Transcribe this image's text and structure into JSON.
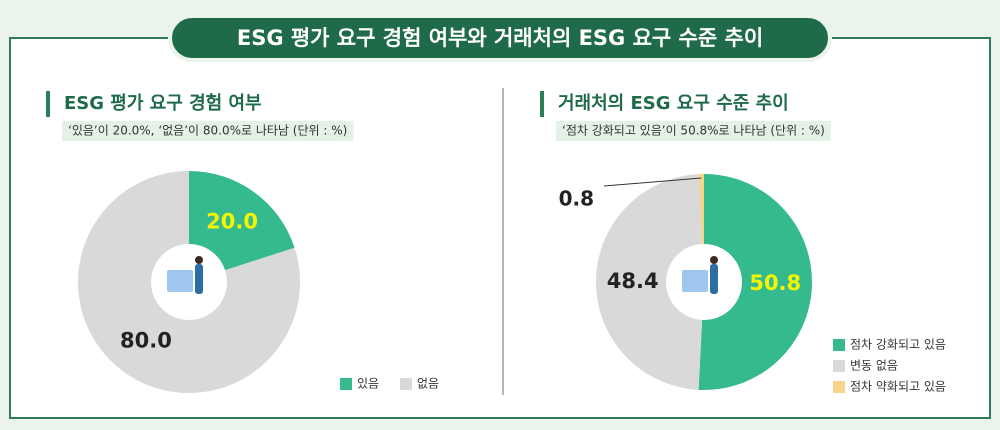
{
  "title": "ESG 평가 요구 경험 여부와 거래처의 ESG 요구 수준 추이",
  "chart_data": [
    {
      "type": "pie",
      "title": "ESG 평가 요구 경험 여부",
      "subtitle": "‘있음’이 20.0%, ‘없음’이 80.0%로 나타남 (단위 : %)",
      "categories": [
        "있음",
        "없음"
      ],
      "values": [
        20,
        80
      ],
      "value_labels": [
        "20.0",
        "80.0"
      ],
      "colors": [
        "#35b98f",
        "#d9d9d9"
      ]
    },
    {
      "type": "pie",
      "title": "거래처의 ESG 요구 수준 추이",
      "subtitle": "‘점차 강화되고 있음’이 50.8%로 나타남 (단위 : %)",
      "categories": [
        "점차 강화되고 있음",
        "변동 없음",
        "점차 약화되고 있음"
      ],
      "values": [
        50.8,
        48.4,
        0.8
      ],
      "colors": [
        "#35b98f",
        "#d9d9d9",
        "#f6d58a"
      ]
    }
  ]
}
